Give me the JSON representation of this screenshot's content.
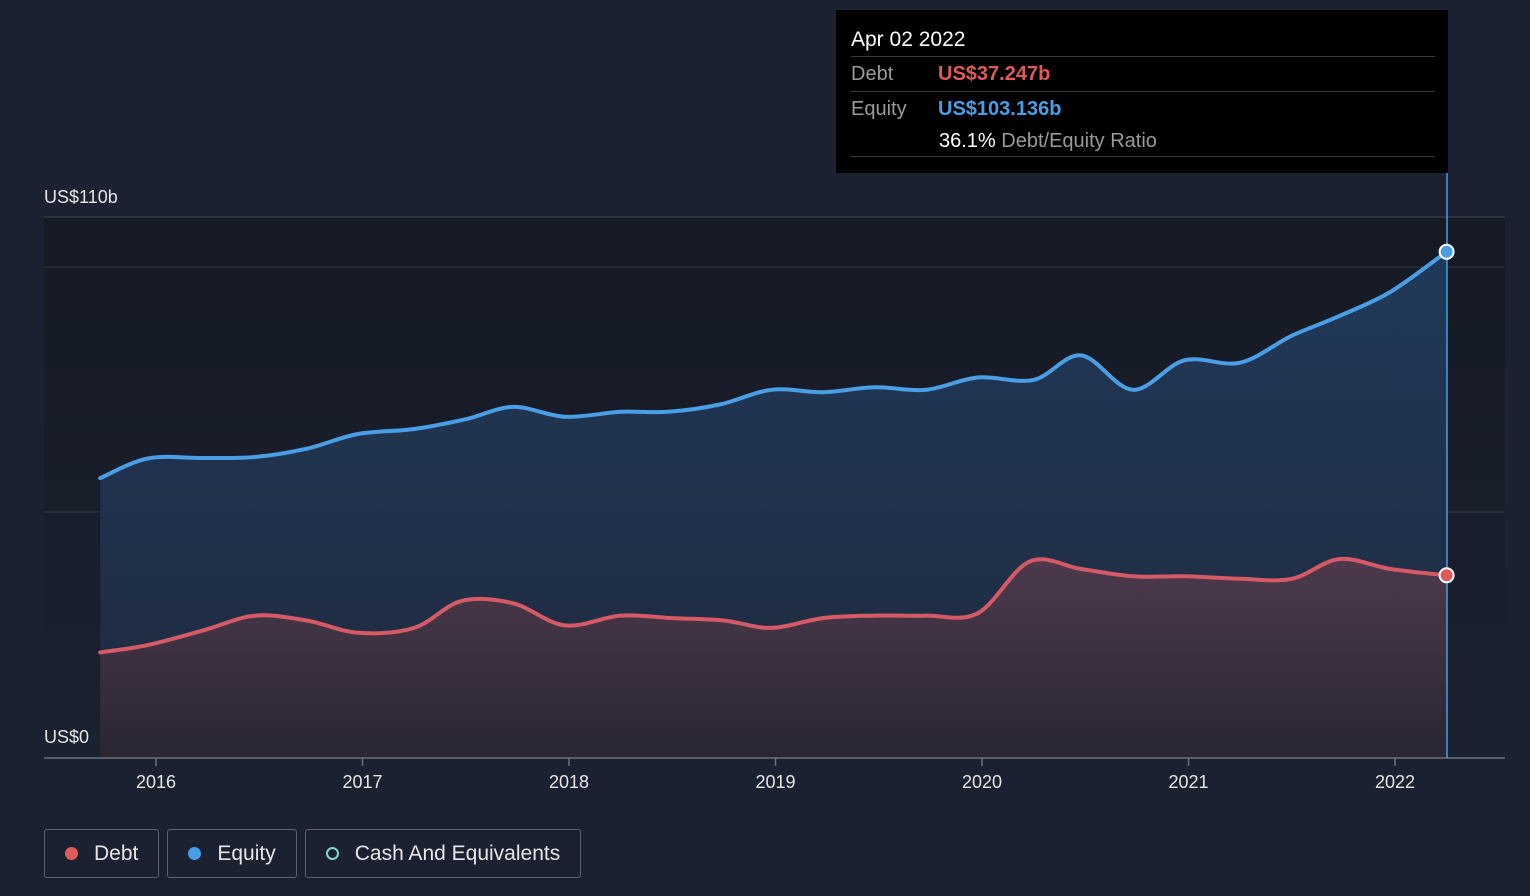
{
  "tooltip": {
    "date": "Apr 02 2022",
    "debt_label": "Debt",
    "debt_value": "US$37.247b",
    "equity_label": "Equity",
    "equity_value": "US$103.136b",
    "ratio_value": "36.1%",
    "ratio_label": "Debt/Equity Ratio"
  },
  "legend": [
    {
      "label": "Debt",
      "color": "#e05a5a",
      "style": "filled"
    },
    {
      "label": "Equity",
      "color": "#4a9ee6",
      "style": "filled"
    },
    {
      "label": "Cash And Equivalents",
      "color": "#7fd6c8",
      "style": "hollow"
    }
  ],
  "chart_data": {
    "type": "area",
    "title": "",
    "y_top_label": "US$110b",
    "y_bottom_label": "US$0",
    "ylim": [
      0,
      110
    ],
    "x_ticks": [
      "2016",
      "2017",
      "2018",
      "2019",
      "2020",
      "2021",
      "2022"
    ],
    "x_tick_years": [
      2016,
      2017,
      2018,
      2019,
      2020,
      2021,
      2022
    ],
    "xlim": [
      2015.25,
      2022.5
    ],
    "grid": true,
    "series": [
      {
        "name": "Equity",
        "color": "#4a9ee6",
        "x": [
          2015.73,
          2015.96,
          2016.23,
          2016.48,
          2016.73,
          2016.98,
          2017.25,
          2017.5,
          2017.73,
          2017.98,
          2018.25,
          2018.48,
          2018.73,
          2018.98,
          2019.23,
          2019.48,
          2019.73,
          2019.98,
          2020.25,
          2020.48,
          2020.73,
          2020.98,
          2021.25,
          2021.5,
          2021.73,
          2021.98,
          2022.25
        ],
        "values": [
          57,
          61,
          61.1,
          61.3,
          63,
          66,
          67,
          69,
          71.5,
          69.5,
          70.5,
          70.5,
          72,
          75,
          74.5,
          75.5,
          75,
          77.5,
          77,
          82,
          75,
          81,
          80.5,
          86,
          90,
          95,
          103.1
        ]
      },
      {
        "name": "Debt",
        "color": "#e05a5a",
        "x": [
          2015.73,
          2015.96,
          2016.23,
          2016.48,
          2016.73,
          2016.98,
          2017.25,
          2017.48,
          2017.73,
          2017.98,
          2018.25,
          2018.5,
          2018.75,
          2018.98,
          2019.23,
          2019.48,
          2019.73,
          2019.98,
          2020.23,
          2020.48,
          2020.73,
          2020.98,
          2021.25,
          2021.5,
          2021.73,
          2021.98,
          2022.25
        ],
        "values": [
          21.5,
          23,
          26,
          29,
          28,
          25.5,
          26.5,
          32,
          31.5,
          27,
          29,
          28.5,
          28,
          26.5,
          28.5,
          29,
          29,
          29.5,
          40,
          38.5,
          37,
          37,
          36.5,
          36.5,
          40.5,
          38.5,
          37.2
        ]
      }
    ]
  }
}
